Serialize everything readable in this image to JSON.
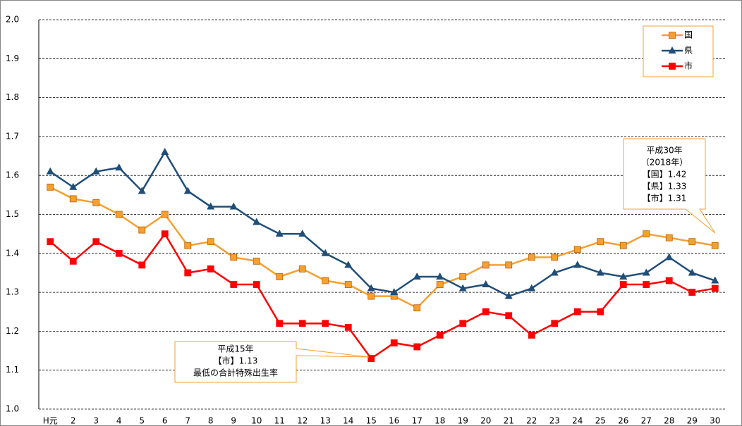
{
  "chart_data": {
    "type": "line",
    "categories": [
      "H元",
      "2",
      "3",
      "4",
      "5",
      "6",
      "7",
      "8",
      "9",
      "10",
      "11",
      "12",
      "13",
      "14",
      "15",
      "16",
      "17",
      "18",
      "19",
      "20",
      "21",
      "22",
      "23",
      "24",
      "25",
      "26",
      "27",
      "28",
      "29",
      "30"
    ],
    "series": [
      {
        "name": "国",
        "color": "#f5a030",
        "marker": "square",
        "values": [
          1.57,
          1.54,
          1.53,
          1.5,
          1.46,
          1.5,
          1.42,
          1.43,
          1.39,
          1.38,
          1.34,
          1.36,
          1.33,
          1.32,
          1.29,
          1.29,
          1.26,
          1.32,
          1.34,
          1.37,
          1.37,
          1.39,
          1.39,
          1.41,
          1.43,
          1.42,
          1.45,
          1.44,
          1.43,
          1.42
        ]
      },
      {
        "name": "県",
        "color": "#1f4e79",
        "marker": "triangle",
        "values": [
          1.61,
          1.57,
          1.61,
          1.62,
          1.56,
          1.66,
          1.56,
          1.52,
          1.52,
          1.48,
          1.45,
          1.45,
          1.4,
          1.37,
          1.31,
          1.3,
          1.34,
          1.34,
          1.31,
          1.32,
          1.29,
          1.31,
          1.35,
          1.37,
          1.35,
          1.34,
          1.35,
          1.39,
          1.35,
          1.33
        ]
      },
      {
        "name": "市",
        "color": "#ff0000",
        "marker": "square",
        "values": [
          1.43,
          1.38,
          1.43,
          1.4,
          1.37,
          1.45,
          1.35,
          1.36,
          1.32,
          1.32,
          1.22,
          1.22,
          1.22,
          1.21,
          1.13,
          1.17,
          1.16,
          1.19,
          1.22,
          1.25,
          1.24,
          1.19,
          1.22,
          1.25,
          1.25,
          1.32,
          1.32,
          1.33,
          1.3,
          1.31
        ]
      }
    ],
    "ylim": [
      1.0,
      2.0
    ],
    "yticks": [
      {
        "value": 1.0,
        "label": "1.0"
      },
      1.1,
      1.2,
      1.3,
      1.4,
      1.5,
      1.6,
      1.7,
      1.8,
      1.9,
      {
        "value": 2.0,
        "label": "2.0"
      }
    ],
    "grid": true,
    "legend": "top-right",
    "annotations": [
      {
        "lines": [
          "平成30年",
          "（2018年）",
          "【国】1.42",
          "【県】1.33",
          "【市】1.31"
        ]
      },
      {
        "lines": [
          "平成15年",
          "【市】1.13",
          "最低の合計特殊出生率"
        ]
      }
    ]
  }
}
